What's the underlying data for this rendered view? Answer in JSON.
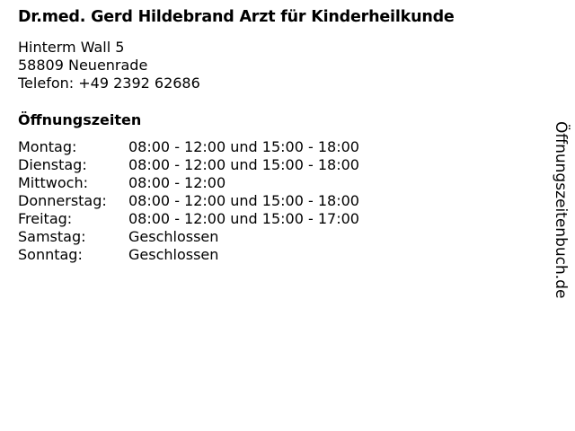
{
  "title": "Dr.med. Gerd Hildebrand Arzt für Kinderheilkunde",
  "address": {
    "street": "Hinterm Wall 5",
    "city": "58809 Neuenrade",
    "phone": "Telefon: +49 2392 62686"
  },
  "hours_heading": "Öffnungszeiten",
  "hours": [
    {
      "day": "Montag:",
      "time": "08:00 - 12:00 und 15:00 - 18:00"
    },
    {
      "day": "Dienstag:",
      "time": "08:00 - 12:00 und 15:00 - 18:00"
    },
    {
      "day": "Mittwoch:",
      "time": "08:00 - 12:00"
    },
    {
      "day": "Donnerstag:",
      "time": "08:00 - 12:00 und 15:00 - 18:00"
    },
    {
      "day": "Freitag:",
      "time": "08:00 - 12:00 und 15:00 - 17:00"
    },
    {
      "day": "Samstag:",
      "time": "Geschlossen"
    },
    {
      "day": "Sonntag:",
      "time": "Geschlossen"
    }
  ],
  "watermark": "Öffnungszeitenbuch.de"
}
